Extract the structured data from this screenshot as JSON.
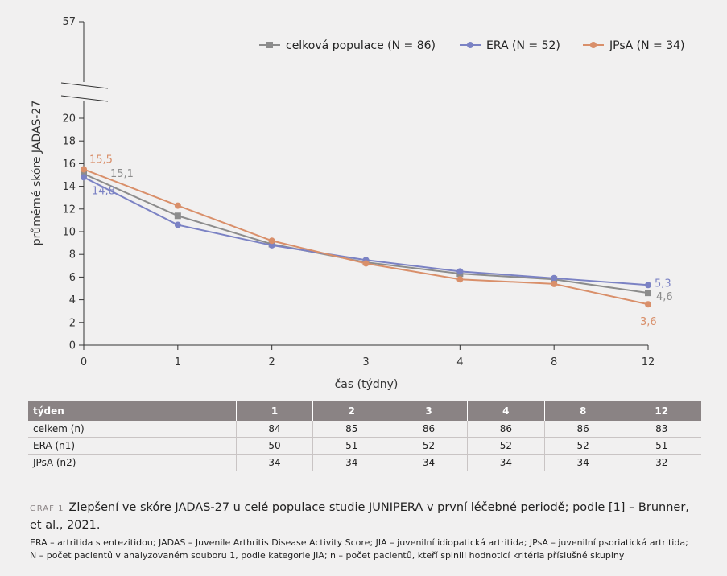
{
  "chart_data": {
    "type": "line",
    "xlabel": "čas (týdny)",
    "ylabel": "průměrné skóre JADAS-27",
    "x": [
      "0",
      "1",
      "2",
      "3",
      "4",
      "8",
      "12"
    ],
    "y_ticks_lower": [
      "0",
      "2",
      "4",
      "6",
      "8",
      "10",
      "12",
      "14",
      "16",
      "18",
      "20"
    ],
    "y_tick_upper": "57",
    "axis_break": true,
    "ylim": [
      0,
      57
    ],
    "legend_position": "top-right",
    "series": [
      {
        "name": "celková populace (N = 86)",
        "color": "#8c8c8c",
        "marker": "square",
        "values": [
          15.1,
          11.4,
          8.9,
          7.3,
          6.3,
          5.8,
          4.6
        ],
        "start_label": "15,1",
        "end_label": "4,6"
      },
      {
        "name": "ERA (N = 52)",
        "color": "#7b82c4",
        "marker": "circle",
        "values": [
          14.8,
          10.6,
          8.8,
          7.5,
          6.5,
          5.9,
          5.3
        ],
        "start_label": "14,8",
        "end_label": "5,3"
      },
      {
        "name": "JPsA (N = 34)",
        "color": "#d98f6a",
        "marker": "circle",
        "values": [
          15.5,
          12.3,
          9.2,
          7.2,
          5.8,
          5.4,
          3.6
        ],
        "start_label": "15,5",
        "end_label": "3,6"
      }
    ]
  },
  "table": {
    "header": [
      "týden",
      "1",
      "2",
      "3",
      "4",
      "8",
      "12"
    ],
    "rows": [
      [
        "celkem (n)",
        "84",
        "85",
        "86",
        "86",
        "86",
        "83"
      ],
      [
        "ERA (n1)",
        "50",
        "51",
        "52",
        "52",
        "52",
        "51"
      ],
      [
        "JPsA (n2)",
        "34",
        "34",
        "34",
        "34",
        "34",
        "32"
      ]
    ]
  },
  "caption": {
    "label": "GRAF 1",
    "text": "Zlepšení ve skóre JADAS-27 u celé populace studie JUNIPERA v první léčebné periodě; podle [1] – Brunner, et al., 2021."
  },
  "footnote": {
    "line1": "ERA – artritida s entezitidou; JADAS – Juvenile Arthritis Disease Activity Score; JIA – juvenilní idiopatická artritida; JPsA – juvenilní psoriatická artritida;",
    "line2": "N – počet pacientů v analyzovaném souboru 1, podle kategorie JIA; n – počet pacientů, kteří splnili hodnoticí kritéria příslušné skupiny"
  }
}
